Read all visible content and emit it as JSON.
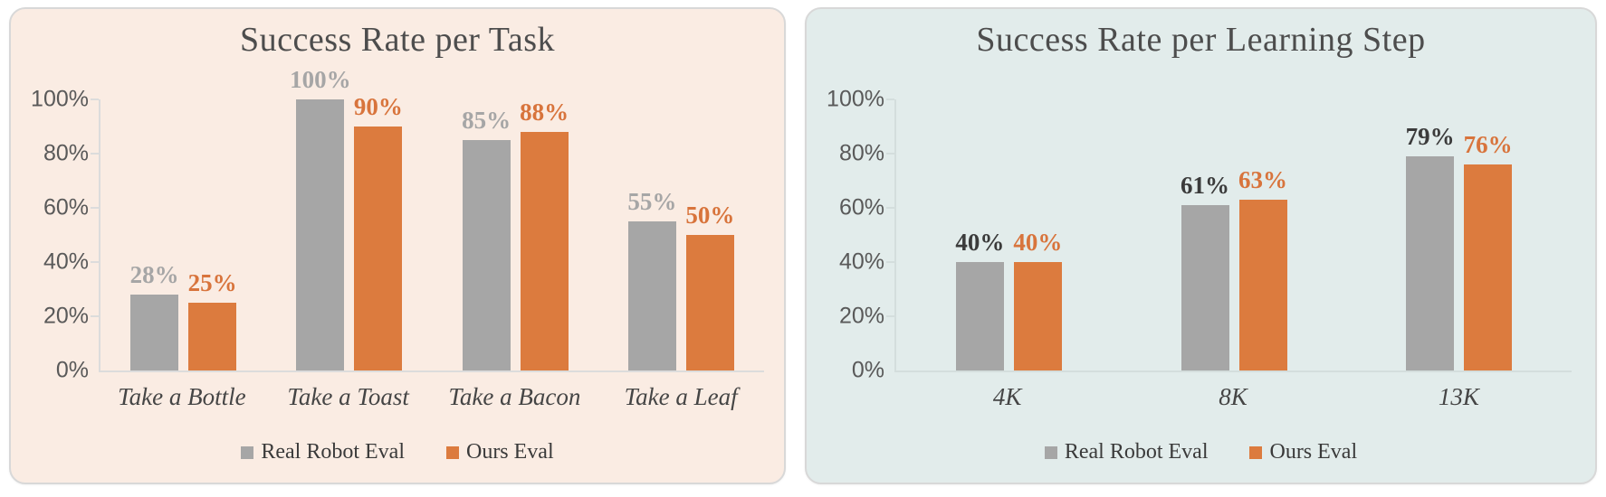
{
  "page": {
    "background": "#ffffff"
  },
  "chart_data": [
    {
      "type": "bar",
      "title": "Success Rate per Task",
      "panel_bg": "#faece3",
      "panel_border": "#d8d8d8",
      "title_color": "#4d4d4d",
      "axis_color": "#dcdcdc",
      "tick_label_color": "#595959",
      "category_label_color": "#454545",
      "legend_text_color": "#3a3a3a",
      "grid": false,
      "legend_position": "bottom",
      "ylim": [
        0,
        100
      ],
      "y_ticks": [
        {
          "value": 0,
          "label": "0%"
        },
        {
          "value": 20,
          "label": "20%"
        },
        {
          "value": 40,
          "label": "40%"
        },
        {
          "value": 60,
          "label": "60%"
        },
        {
          "value": 80,
          "label": "80%"
        },
        {
          "value": 100,
          "label": "100%"
        }
      ],
      "categories": [
        "Take a Bottle",
        "Take a Toast",
        "Take a Bacon",
        "Take a Leaf"
      ],
      "series": [
        {
          "name": "Real Robot Eval",
          "color": "#a6a6a6",
          "label_color": "#a6a6a6",
          "values": [
            28,
            100,
            85,
            55
          ],
          "labels": [
            "28%",
            "100%",
            "85%",
            "55%"
          ]
        },
        {
          "name": "Ours Eval",
          "color": "#dc7b3e",
          "label_color": "#d8743c",
          "values": [
            25,
            90,
            88,
            50
          ],
          "labels": [
            "25%",
            "90%",
            "88%",
            "50%"
          ]
        }
      ]
    },
    {
      "type": "bar",
      "title": "Success Rate per Learning Step",
      "panel_bg": "#e2eceb",
      "panel_border": "#d8d8d8",
      "title_color": "#4d4d4d",
      "axis_color": "#d4dedd",
      "tick_label_color": "#595959",
      "category_label_color": "#454545",
      "legend_text_color": "#3a3a3a",
      "grid": false,
      "legend_position": "bottom",
      "ylim": [
        0,
        100
      ],
      "y_ticks": [
        {
          "value": 0,
          "label": "0%"
        },
        {
          "value": 20,
          "label": "20%"
        },
        {
          "value": 40,
          "label": "40%"
        },
        {
          "value": 60,
          "label": "60%"
        },
        {
          "value": 80,
          "label": "80%"
        },
        {
          "value": 100,
          "label": "100%"
        }
      ],
      "categories": [
        "4K",
        "8K",
        "13K"
      ],
      "series": [
        {
          "name": "Real Robot Eval",
          "color": "#a6a6a6",
          "label_color": "#3b3b3b",
          "values": [
            40,
            61,
            79
          ],
          "labels": [
            "40%",
            "61%",
            "79%"
          ]
        },
        {
          "name": "Ours Eval",
          "color": "#dc7b3e",
          "label_color": "#d8743c",
          "values": [
            40,
            63,
            76
          ],
          "labels": [
            "40%",
            "63%",
            "76%"
          ]
        }
      ]
    }
  ]
}
